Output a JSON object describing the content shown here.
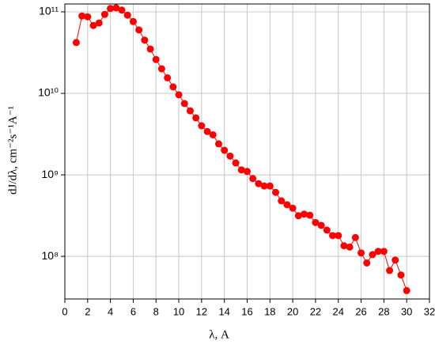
{
  "chart_data": {
    "type": "line",
    "x_label": "λ, A",
    "y_label": "dJ/dλ, cm⁻²s⁻¹A⁻¹",
    "log_y": true,
    "grid": true,
    "xlim": [
      0,
      32
    ],
    "xticks": [
      0,
      2,
      4,
      6,
      8,
      10,
      12,
      14,
      16,
      18,
      20,
      22,
      24,
      26,
      28,
      30,
      32
    ],
    "ylim": [
      30000000,
      125000000000
    ],
    "yticks": [
      {
        "value": 100000000,
        "label": "10⁸"
      },
      {
        "value": 1000000000,
        "label": "10⁹"
      },
      {
        "value": 10000000000,
        "label": "10¹⁰"
      },
      {
        "value": 100000000000,
        "label": "10¹¹"
      }
    ],
    "x": [
      1,
      1.5,
      2,
      2.5,
      3,
      3.5,
      4,
      4.5,
      5,
      5.5,
      6,
      6.5,
      7,
      7.5,
      8,
      8.5,
      9,
      9.5,
      10,
      10.5,
      11,
      11.5,
      12,
      12.5,
      13,
      13.5,
      14,
      14.5,
      15,
      15.5,
      16,
      16.5,
      17,
      17.5,
      18,
      18.5,
      19,
      19.5,
      20,
      20.5,
      21,
      21.5,
      22,
      22.5,
      23,
      23.5,
      24,
      24.5,
      25,
      25.5,
      26,
      26.5,
      27,
      27.5,
      28,
      28.5,
      29,
      29.5,
      30
    ],
    "series": [
      {
        "color": "#ff0000",
        "values": [
          42000000000,
          89000000000,
          87000000000,
          68000000000,
          73000000000,
          93000000000,
          110000000000,
          112000000000,
          105000000000,
          91000000000,
          76000000000,
          60000000000,
          45000000000,
          35000000000,
          26000000000,
          20000000000,
          15500000000,
          12000000000,
          9600000000,
          7500000000,
          6100000000,
          5000000000,
          4000000000,
          3400000000,
          3100000000,
          2400000000,
          2000000000,
          1700000000,
          1400000000,
          1150000000,
          1100000000,
          900000000,
          780000000,
          730000000,
          730000000,
          610000000,
          480000000,
          430000000,
          390000000,
          315000000,
          330000000,
          320000000,
          260000000,
          240000000,
          210000000,
          180000000,
          180000000,
          135000000,
          130000000,
          170000000,
          110000000,
          83000000,
          105000000,
          115000000,
          115000000,
          67000000,
          90000000,
          59000000,
          38000000
        ]
      }
    ]
  }
}
